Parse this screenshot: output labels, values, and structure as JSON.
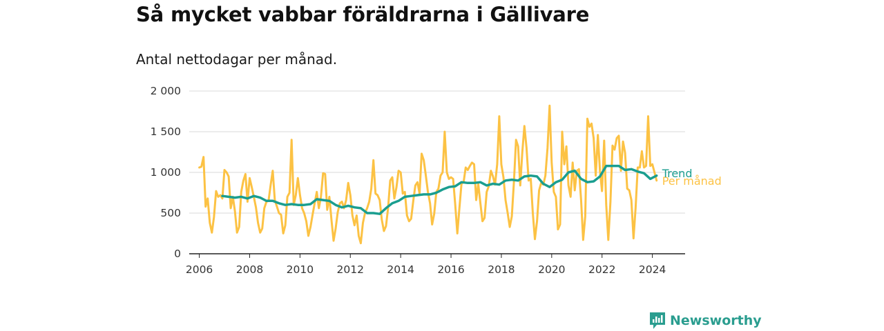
{
  "title": "Så mycket vabbar föräldrarna i Gällivare",
  "subtitle": "Antal nettodagar per månad.",
  "brand": {
    "name": "Newsworthy",
    "icon": "newsworthy-logo-icon"
  },
  "colors": {
    "monthly": "#fcc244",
    "trend": "#1a9e8f",
    "grid": "#d9d9d9",
    "axis": "#222222"
  },
  "chart_data": {
    "type": "line",
    "title": "Så mycket vabbar föräldrarna i Gällivare",
    "subtitle": "Antal nettodagar per månad.",
    "xlabel": "",
    "ylabel": "",
    "xlim": [
      2005.6,
      2025.3
    ],
    "ylim": [
      0,
      2000
    ],
    "x_ticks": [
      2006,
      2008,
      2010,
      2012,
      2014,
      2016,
      2018,
      2020,
      2022,
      2024
    ],
    "x_tick_labels": [
      "2006",
      "2008",
      "2010",
      "2012",
      "2014",
      "2016",
      "2018",
      "2020",
      "2022",
      "2024"
    ],
    "y_ticks": [
      0,
      500,
      1000,
      1500,
      2000
    ],
    "y_tick_labels": [
      "0",
      "500",
      "1 000",
      "1 500",
      "2 000"
    ],
    "grid": true,
    "legend": "inline labels at right end of lines",
    "series": [
      {
        "name": "Per månad",
        "points": [
          [
            "2006-01",
            1060
          ],
          [
            "2006-02",
            1070
          ],
          [
            "2006-03",
            1190
          ],
          [
            "2006-04",
            580
          ],
          [
            "2006-05",
            680
          ],
          [
            "2006-06",
            380
          ],
          [
            "2006-07",
            260
          ],
          [
            "2006-08",
            450
          ],
          [
            "2006-09",
            770
          ],
          [
            "2006-10",
            700
          ],
          [
            "2006-11",
            720
          ],
          [
            "2006-12",
            680
          ],
          [
            "2007-01",
            1030
          ],
          [
            "2007-02",
            1000
          ],
          [
            "2007-03",
            950
          ],
          [
            "2007-04",
            560
          ],
          [
            "2007-05",
            700
          ],
          [
            "2007-06",
            520
          ],
          [
            "2007-07",
            260
          ],
          [
            "2007-08",
            330
          ],
          [
            "2007-09",
            760
          ],
          [
            "2007-10",
            900
          ],
          [
            "2007-11",
            980
          ],
          [
            "2007-12",
            640
          ],
          [
            "2008-01",
            930
          ],
          [
            "2008-02",
            820
          ],
          [
            "2008-03",
            700
          ],
          [
            "2008-04",
            570
          ],
          [
            "2008-05",
            380
          ],
          [
            "2008-06",
            260
          ],
          [
            "2008-07",
            310
          ],
          [
            "2008-08",
            560
          ],
          [
            "2008-09",
            640
          ],
          [
            "2008-10",
            650
          ],
          [
            "2008-11",
            840
          ],
          [
            "2008-12",
            1020
          ],
          [
            "2009-01",
            660
          ],
          [
            "2009-02",
            580
          ],
          [
            "2009-03",
            500
          ],
          [
            "2009-04",
            480
          ],
          [
            "2009-05",
            250
          ],
          [
            "2009-06",
            350
          ],
          [
            "2009-07",
            700
          ],
          [
            "2009-08",
            750
          ],
          [
            "2009-09",
            1400
          ],
          [
            "2009-10",
            600
          ],
          [
            "2009-11",
            720
          ],
          [
            "2009-12",
            930
          ],
          [
            "2010-01",
            720
          ],
          [
            "2010-02",
            560
          ],
          [
            "2010-03",
            500
          ],
          [
            "2010-04",
            400
          ],
          [
            "2010-05",
            220
          ],
          [
            "2010-06",
            330
          ],
          [
            "2010-07",
            480
          ],
          [
            "2010-08",
            620
          ],
          [
            "2010-09",
            760
          ],
          [
            "2010-10",
            560
          ],
          [
            "2010-11",
            700
          ],
          [
            "2010-12",
            990
          ],
          [
            "2011-01",
            980
          ],
          [
            "2011-02",
            540
          ],
          [
            "2011-03",
            700
          ],
          [
            "2011-04",
            420
          ],
          [
            "2011-05",
            160
          ],
          [
            "2011-06",
            310
          ],
          [
            "2011-07",
            510
          ],
          [
            "2011-08",
            620
          ],
          [
            "2011-09",
            640
          ],
          [
            "2011-10",
            560
          ],
          [
            "2011-11",
            660
          ],
          [
            "2011-12",
            870
          ],
          [
            "2012-01",
            720
          ],
          [
            "2012-02",
            470
          ],
          [
            "2012-03",
            350
          ],
          [
            "2012-04",
            470
          ],
          [
            "2012-05",
            220
          ],
          [
            "2012-06",
            130
          ],
          [
            "2012-07",
            380
          ],
          [
            "2012-08",
            500
          ],
          [
            "2012-09",
            560
          ],
          [
            "2012-10",
            640
          ],
          [
            "2012-11",
            800
          ],
          [
            "2012-12",
            1150
          ],
          [
            "2013-01",
            740
          ],
          [
            "2013-02",
            720
          ],
          [
            "2013-03",
            660
          ],
          [
            "2013-04",
            420
          ],
          [
            "2013-05",
            280
          ],
          [
            "2013-06",
            340
          ],
          [
            "2013-07",
            560
          ],
          [
            "2013-08",
            900
          ],
          [
            "2013-09",
            940
          ],
          [
            "2013-10",
            680
          ],
          [
            "2013-11",
            820
          ],
          [
            "2013-12",
            1020
          ],
          [
            "2014-01",
            1000
          ],
          [
            "2014-02",
            740
          ],
          [
            "2014-03",
            760
          ],
          [
            "2014-04",
            470
          ],
          [
            "2014-05",
            400
          ],
          [
            "2014-06",
            430
          ],
          [
            "2014-07",
            650
          ],
          [
            "2014-08",
            840
          ],
          [
            "2014-09",
            880
          ],
          [
            "2014-10",
            740
          ],
          [
            "2014-11",
            1230
          ],
          [
            "2014-12",
            1150
          ],
          [
            "2015-01",
            960
          ],
          [
            "2015-02",
            760
          ],
          [
            "2015-03",
            620
          ],
          [
            "2015-04",
            360
          ],
          [
            "2015-05",
            490
          ],
          [
            "2015-06",
            760
          ],
          [
            "2015-07",
            800
          ],
          [
            "2015-08",
            960
          ],
          [
            "2015-09",
            1000
          ],
          [
            "2015-10",
            1500
          ],
          [
            "2015-11",
            1000
          ],
          [
            "2015-12",
            920
          ],
          [
            "2016-01",
            940
          ],
          [
            "2016-02",
            920
          ],
          [
            "2016-03",
            610
          ],
          [
            "2016-04",
            250
          ],
          [
            "2016-05",
            560
          ],
          [
            "2016-06",
            860
          ],
          [
            "2016-07",
            880
          ],
          [
            "2016-08",
            1060
          ],
          [
            "2016-09",
            1030
          ],
          [
            "2016-10",
            1080
          ],
          [
            "2016-11",
            1120
          ],
          [
            "2016-12",
            1100
          ],
          [
            "2017-01",
            660
          ],
          [
            "2017-02",
            860
          ],
          [
            "2017-03",
            620
          ],
          [
            "2017-04",
            400
          ],
          [
            "2017-05",
            440
          ],
          [
            "2017-06",
            760
          ],
          [
            "2017-07",
            830
          ],
          [
            "2017-08",
            1020
          ],
          [
            "2017-09",
            950
          ],
          [
            "2017-10",
            850
          ],
          [
            "2017-11",
            1100
          ],
          [
            "2017-12",
            1690
          ],
          [
            "2018-01",
            1100
          ],
          [
            "2018-02",
            940
          ],
          [
            "2018-03",
            660
          ],
          [
            "2018-04",
            500
          ],
          [
            "2018-05",
            330
          ],
          [
            "2018-06",
            460
          ],
          [
            "2018-07",
            890
          ],
          [
            "2018-08",
            1400
          ],
          [
            "2018-09",
            1320
          ],
          [
            "2018-10",
            840
          ],
          [
            "2018-11",
            1250
          ],
          [
            "2018-12",
            1570
          ],
          [
            "2019-01",
            1300
          ],
          [
            "2019-02",
            900
          ],
          [
            "2019-03",
            920
          ],
          [
            "2019-04",
            500
          ],
          [
            "2019-05",
            180
          ],
          [
            "2019-06",
            400
          ],
          [
            "2019-07",
            780
          ],
          [
            "2019-08",
            870
          ],
          [
            "2019-09",
            850
          ],
          [
            "2019-10",
            960
          ],
          [
            "2019-11",
            1300
          ],
          [
            "2019-12",
            1820
          ],
          [
            "2020-01",
            1120
          ],
          [
            "2020-02",
            760
          ],
          [
            "2020-03",
            700
          ],
          [
            "2020-04",
            300
          ],
          [
            "2020-05",
            360
          ],
          [
            "2020-06",
            1500
          ],
          [
            "2020-07",
            1100
          ],
          [
            "2020-08",
            1320
          ],
          [
            "2020-09",
            840
          ],
          [
            "2020-10",
            700
          ],
          [
            "2020-11",
            1120
          ],
          [
            "2020-12",
            780
          ],
          [
            "2021-01",
            1020
          ],
          [
            "2021-02",
            1040
          ],
          [
            "2021-03",
            660
          ],
          [
            "2021-04",
            170
          ],
          [
            "2021-05",
            460
          ],
          [
            "2021-06",
            1660
          ],
          [
            "2021-07",
            1560
          ],
          [
            "2021-08",
            1600
          ],
          [
            "2021-09",
            1420
          ],
          [
            "2021-10",
            960
          ],
          [
            "2021-11",
            1460
          ],
          [
            "2021-12",
            1020
          ],
          [
            "2022-01",
            770
          ],
          [
            "2022-02",
            1390
          ],
          [
            "2022-03",
            600
          ],
          [
            "2022-04",
            170
          ],
          [
            "2022-05",
            640
          ],
          [
            "2022-06",
            1330
          ],
          [
            "2022-07",
            1280
          ],
          [
            "2022-08",
            1420
          ],
          [
            "2022-09",
            1450
          ],
          [
            "2022-10",
            1020
          ],
          [
            "2022-11",
            1380
          ],
          [
            "2022-12",
            1240
          ],
          [
            "2023-01",
            800
          ],
          [
            "2023-02",
            780
          ],
          [
            "2023-03",
            660
          ],
          [
            "2023-04",
            190
          ],
          [
            "2023-05",
            560
          ],
          [
            "2023-06",
            1060
          ],
          [
            "2023-07",
            1060
          ],
          [
            "2023-08",
            1260
          ],
          [
            "2023-09",
            1060
          ],
          [
            "2023-10",
            1080
          ],
          [
            "2023-11",
            1690
          ],
          [
            "2023-12",
            1080
          ],
          [
            "2024-01",
            1100
          ],
          [
            "2024-02",
            1000
          ],
          [
            "2024-03",
            900
          ]
        ]
      },
      {
        "name": "Trend",
        "points": [
          [
            "2006-12",
            710
          ],
          [
            "2007-03",
            700
          ],
          [
            "2007-06",
            690
          ],
          [
            "2007-09",
            700
          ],
          [
            "2007-12",
            680
          ],
          [
            "2008-03",
            710
          ],
          [
            "2008-06",
            690
          ],
          [
            "2008-09",
            650
          ],
          [
            "2008-12",
            650
          ],
          [
            "2009-03",
            620
          ],
          [
            "2009-06",
            600
          ],
          [
            "2009-09",
            610
          ],
          [
            "2009-12",
            600
          ],
          [
            "2010-03",
            600
          ],
          [
            "2010-06",
            610
          ],
          [
            "2010-09",
            670
          ],
          [
            "2010-12",
            660
          ],
          [
            "2011-03",
            650
          ],
          [
            "2011-06",
            600
          ],
          [
            "2011-09",
            570
          ],
          [
            "2011-12",
            590
          ],
          [
            "2012-03",
            570
          ],
          [
            "2012-06",
            560
          ],
          [
            "2012-09",
            500
          ],
          [
            "2012-12",
            500
          ],
          [
            "2013-03",
            490
          ],
          [
            "2013-06",
            560
          ],
          [
            "2013-09",
            620
          ],
          [
            "2013-12",
            650
          ],
          [
            "2014-03",
            700
          ],
          [
            "2014-06",
            710
          ],
          [
            "2014-09",
            720
          ],
          [
            "2014-12",
            730
          ],
          [
            "2015-03",
            730
          ],
          [
            "2015-06",
            750
          ],
          [
            "2015-09",
            790
          ],
          [
            "2015-12",
            820
          ],
          [
            "2016-03",
            830
          ],
          [
            "2016-06",
            880
          ],
          [
            "2016-09",
            870
          ],
          [
            "2016-12",
            870
          ],
          [
            "2017-03",
            880
          ],
          [
            "2017-06",
            840
          ],
          [
            "2017-09",
            860
          ],
          [
            "2017-12",
            850
          ],
          [
            "2018-03",
            900
          ],
          [
            "2018-06",
            910
          ],
          [
            "2018-09",
            900
          ],
          [
            "2018-12",
            950
          ],
          [
            "2019-03",
            960
          ],
          [
            "2019-06",
            950
          ],
          [
            "2019-09",
            860
          ],
          [
            "2019-12",
            820
          ],
          [
            "2020-03",
            880
          ],
          [
            "2020-06",
            910
          ],
          [
            "2020-09",
            1000
          ],
          [
            "2020-12",
            1020
          ],
          [
            "2021-03",
            920
          ],
          [
            "2021-06",
            880
          ],
          [
            "2021-09",
            890
          ],
          [
            "2021-12",
            950
          ],
          [
            "2022-03",
            1080
          ],
          [
            "2022-06",
            1080
          ],
          [
            "2022-09",
            1080
          ],
          [
            "2022-12",
            1030
          ],
          [
            "2023-03",
            1040
          ],
          [
            "2023-06",
            1010
          ],
          [
            "2023-09",
            990
          ],
          [
            "2023-12",
            920
          ],
          [
            "2024-03",
            960
          ]
        ]
      }
    ]
  }
}
